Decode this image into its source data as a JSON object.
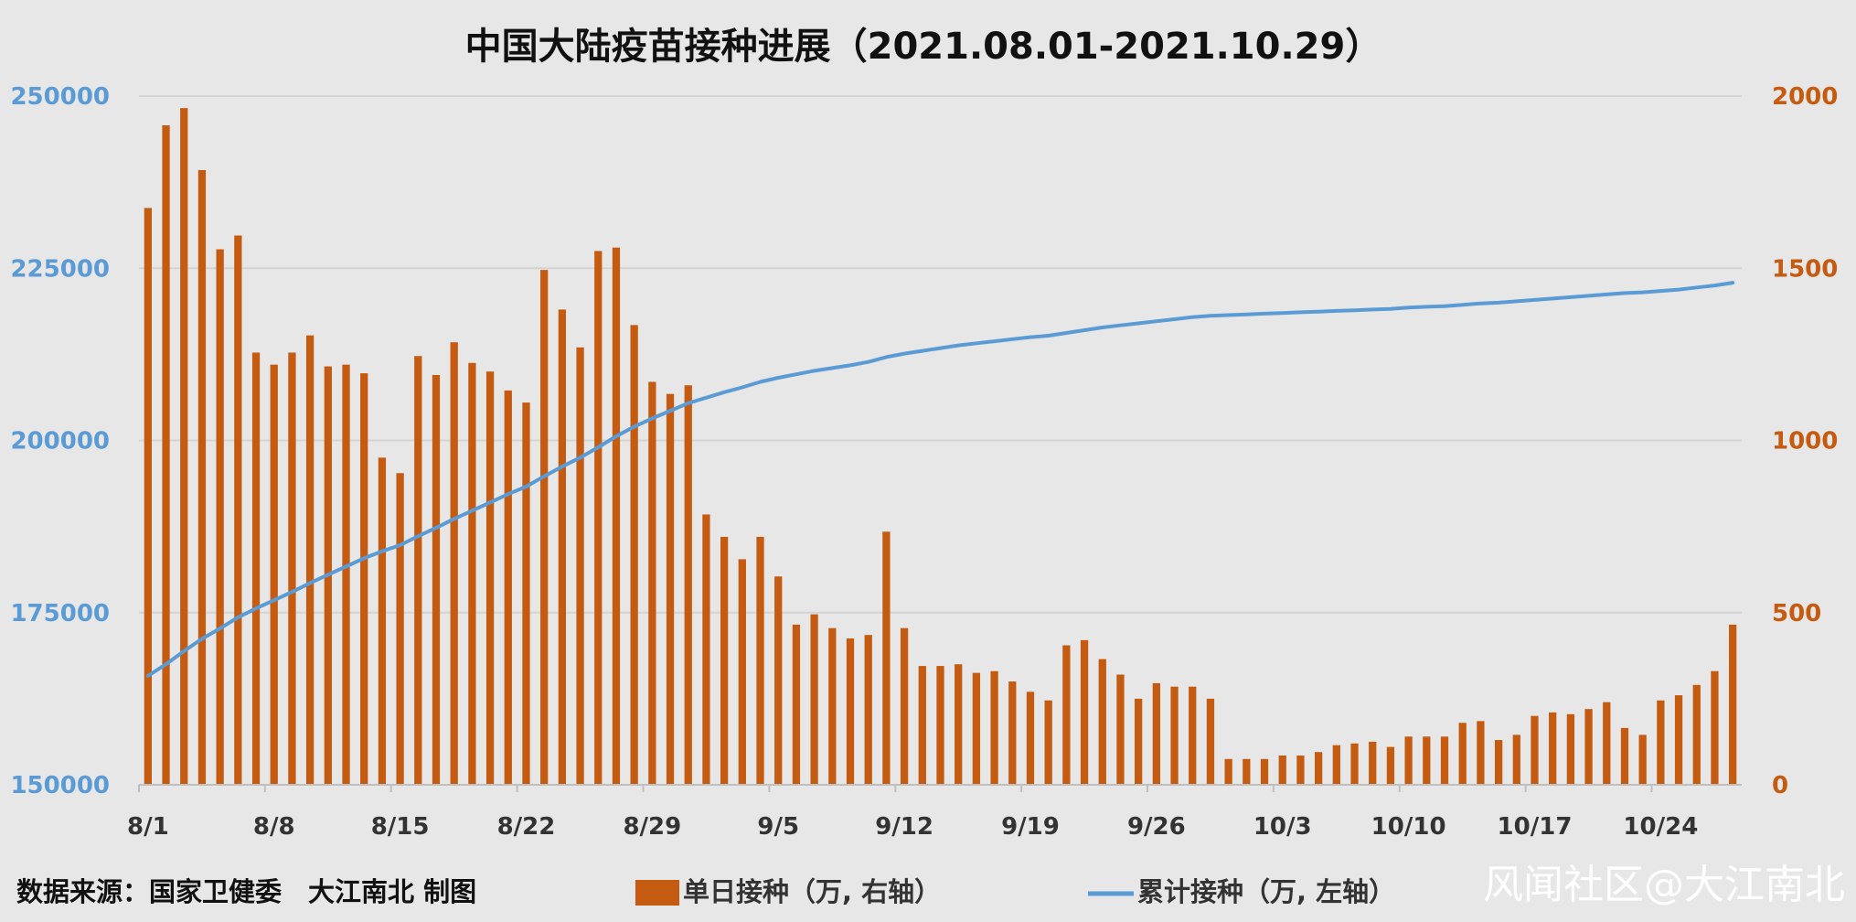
{
  "chart_data": {
    "type": "bar",
    "title": "中国大陆疫苗接种进展（2021.08.01-2021.10.29）",
    "x_tick_labels": [
      "8/1",
      "8/8",
      "8/15",
      "8/22",
      "8/29",
      "9/5",
      "9/12",
      "9/19",
      "9/26",
      "10/3",
      "10/10",
      "10/17",
      "10/24"
    ],
    "left_axis": {
      "ylim": [
        150000,
        250000
      ],
      "ticks": [
        "150000",
        "175000",
        "200000",
        "225000",
        "250000"
      ],
      "color": "#5b9bd5"
    },
    "right_axis": {
      "ylim": [
        0,
        2000
      ],
      "ticks": [
        "0",
        "500",
        "1000",
        "1500",
        "2000"
      ],
      "color": "#c55a11"
    },
    "grid": true,
    "legend_position": "bottom",
    "series": [
      {
        "name": "单日接种（万, 右轴）",
        "type": "bar",
        "axis": "right",
        "color": "#c55a11",
        "values": [
          1675,
          1915,
          1965,
          1785,
          1555,
          1595,
          1255,
          1220,
          1255,
          1305,
          1215,
          1220,
          1195,
          950,
          905,
          1245,
          1190,
          1285,
          1225,
          1200,
          1145,
          1110,
          1495,
          1380,
          1270,
          1550,
          1560,
          1335,
          1170,
          1135,
          1160,
          785,
          720,
          655,
          720,
          605,
          465,
          495,
          455,
          425,
          435,
          735,
          455,
          345,
          345,
          350,
          325,
          330,
          300,
          270,
          245,
          405,
          420,
          365,
          320,
          250,
          295,
          285,
          285,
          250,
          75,
          75,
          75,
          85,
          85,
          95,
          115,
          120,
          125,
          110,
          140,
          140,
          140,
          180,
          185,
          130,
          145,
          200,
          210,
          205,
          220,
          240,
          165,
          145,
          245,
          260,
          290,
          330,
          465
        ]
      },
      {
        "name": "累计接种（万, 左轴）",
        "type": "line",
        "axis": "left",
        "color": "#5b9bd5",
        "values": [
          165800,
          167500,
          169400,
          171200,
          172700,
          174300,
          175600,
          176800,
          178000,
          179300,
          180500,
          181700,
          182900,
          183900,
          184800,
          186100,
          187300,
          188600,
          189800,
          191000,
          192200,
          193300,
          194800,
          196200,
          197500,
          199000,
          200600,
          202000,
          203200,
          204300,
          205400,
          206200,
          207000,
          207700,
          208500,
          209100,
          209600,
          210100,
          210500,
          210900,
          211400,
          212100,
          212600,
          213000,
          213400,
          213800,
          214100,
          214400,
          214700,
          215000,
          215200,
          215600,
          216000,
          216400,
          216700,
          217000,
          217300,
          217600,
          217900,
          218100,
          218200,
          218300,
          218400,
          218500,
          218600,
          218700,
          218800,
          218900,
          219000,
          219100,
          219300,
          219400,
          219500,
          219700,
          219900,
          220000,
          220200,
          220400,
          220600,
          220800,
          221000,
          221200,
          221400,
          221500,
          221700,
          221900,
          222200,
          222500,
          222900
        ]
      }
    ]
  },
  "footer": {
    "source": "数据来源：国家卫健委　大江南北 制图",
    "watermark": "风闻社区@大江南北"
  },
  "legend": {
    "bar_label": "单日接种（万, 右轴）",
    "line_label": "累计接种（万, 左轴）"
  }
}
